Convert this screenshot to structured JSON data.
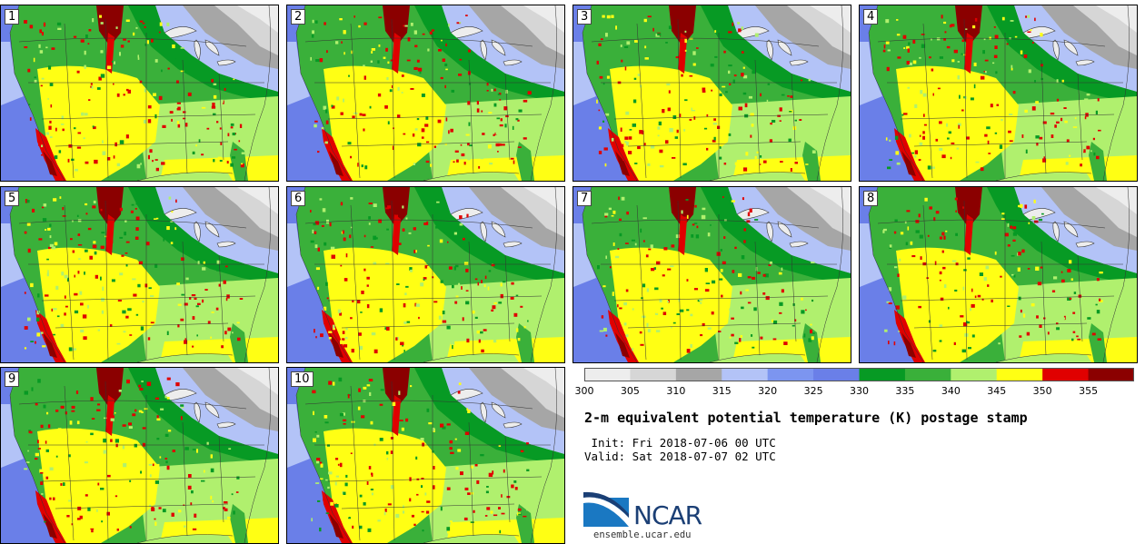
{
  "title": "2-m equivalent potential temperature (K) postage stamp",
  "init": " Init: Fri 2018-07-06 00 UTC",
  "valid": "Valid: Sat 2018-07-07 02 UTC",
  "logo_text": "NCAR",
  "site": "ensemble.ucar.edu",
  "panels": [
    "1",
    "2",
    "3",
    "4",
    "5",
    "6",
    "7",
    "8",
    "9",
    "10"
  ],
  "colorbar": {
    "ticks": [
      "300",
      "305",
      "310",
      "315",
      "320",
      "325",
      "330",
      "335",
      "340",
      "345",
      "350",
      "355"
    ],
    "colors": [
      "#ededed",
      "#d6d6d6",
      "#a6a6a6",
      "#b3c3f7",
      "#7c95f0",
      "#6a7fe8",
      "#079a24",
      "#3ab03a",
      "#b0f06e",
      "#ffff14",
      "#e00000",
      "#8b0000"
    ]
  },
  "map_colors": {
    "ocean": "#7a93ef",
    "ocean_deep": "#6a7fe8",
    "cool": "#b3c3f7",
    "gray": "#a6a6a6",
    "lightgray": "#d6d6d6",
    "white": "#ededed",
    "green_dark": "#079a24",
    "green": "#3ab03a",
    "green_light": "#b0f06e",
    "yellow": "#ffff14",
    "red": "#e00000",
    "maroon": "#8b0000"
  }
}
